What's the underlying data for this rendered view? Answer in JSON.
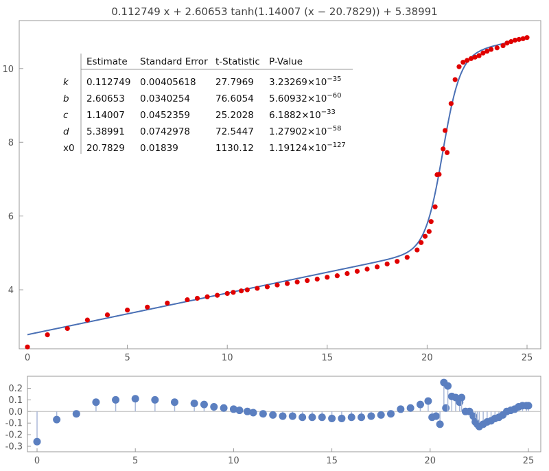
{
  "chart_data": [
    {
      "type": "scatter",
      "title": "0.112749 x + 2.60653 tanh(1.14007 (x − 20.7829)) + 5.38991",
      "xlim": [
        0,
        25
      ],
      "ylim": [
        2.4,
        11.3
      ],
      "xticks": [
        "0",
        "5",
        "10",
        "15",
        "20",
        "25"
      ],
      "yticks": [
        "4",
        "6",
        "8",
        "10"
      ],
      "grid": false,
      "series": [
        {
          "kind": "points",
          "color": "#e00000",
          "x": [
            0,
            1,
            2,
            3,
            4,
            5,
            6,
            7,
            8,
            8.5,
            9,
            9.5,
            10,
            10.3,
            10.7,
            11,
            11.5,
            12,
            12.5,
            13,
            13.5,
            14,
            14.5,
            15,
            15.5,
            16,
            16.5,
            17,
            17.5,
            18,
            18.5,
            19,
            19.5,
            19.7,
            19.9,
            20.1,
            20.2,
            20.4,
            20.5,
            20.6,
            20.8,
            20.9,
            21.0,
            21.2,
            21.4,
            21.6,
            21.8,
            22.0,
            22.2,
            22.4,
            22.6,
            22.8,
            23.0,
            23.2,
            23.5,
            23.8,
            24.0,
            24.2,
            24.4,
            24.6,
            24.8,
            25.0
          ],
          "y": [
            2.45,
            2.78,
            2.95,
            3.18,
            3.32,
            3.45,
            3.53,
            3.64,
            3.73,
            3.77,
            3.81,
            3.85,
            3.9,
            3.93,
            3.97,
            4.0,
            4.04,
            4.08,
            4.13,
            4.17,
            4.21,
            4.25,
            4.29,
            4.34,
            4.38,
            4.44,
            4.5,
            4.56,
            4.62,
            4.7,
            4.77,
            4.88,
            5.08,
            5.28,
            5.45,
            5.58,
            5.85,
            6.25,
            7.12,
            7.13,
            7.82,
            8.32,
            7.72,
            9.05,
            9.7,
            10.05,
            10.17,
            10.22,
            10.27,
            10.31,
            10.35,
            10.42,
            10.47,
            10.52,
            10.56,
            10.62,
            10.69,
            10.73,
            10.77,
            10.79,
            10.81,
            10.84
          ]
        },
        {
          "kind": "curve",
          "color": "#4a70b5",
          "formula": "0.112749*x + 2.60653*tanh(1.14007*(x-20.7829)) + 5.38991"
        }
      ],
      "table": {
        "headers": [
          "",
          "Estimate",
          "Standard Error",
          "t-Statistic",
          "P-Value"
        ],
        "rows": [
          {
            "param": "k",
            "estimate": "0.112749",
            "stderr": "0.00405618",
            "tstat": "27.7969",
            "pvalue": "3.23269×10",
            "pexp": "−35"
          },
          {
            "param": "b",
            "estimate": "2.60653",
            "stderr": "0.0340254",
            "tstat": "76.6054",
            "pvalue": "5.60932×10",
            "pexp": "−60"
          },
          {
            "param": "c",
            "estimate": "1.14007",
            "stderr": "0.0452359",
            "tstat": "25.2028",
            "pvalue": "6.1882×10",
            "pexp": "−33"
          },
          {
            "param": "d",
            "estimate": "5.38991",
            "stderr": "0.0742978",
            "tstat": "72.5447",
            "pvalue": "1.27902×10",
            "pexp": "−58"
          },
          {
            "param": "x0",
            "estimate": "20.7829",
            "stderr": "0.01839",
            "tstat": "1130.12",
            "pvalue": "1.19124×10",
            "pexp": "−127"
          }
        ]
      }
    },
    {
      "type": "stem",
      "title": "",
      "xlim": [
        0,
        25
      ],
      "ylim": [
        -0.3,
        0.3
      ],
      "xticks": [
        "0",
        "5",
        "10",
        "15",
        "20",
        "25"
      ],
      "yticks": [
        "0.2",
        "0.1",
        "0.0",
        "-0.1",
        "-0.2",
        "-0.3"
      ],
      "grid": false,
      "series": [
        {
          "kind": "stem",
          "color": "#5b7fc0",
          "x": [
            0,
            1,
            2,
            3,
            4,
            5,
            6,
            7,
            8,
            8.5,
            9,
            9.5,
            10,
            10.3,
            10.7,
            11,
            11.5,
            12,
            12.5,
            13,
            13.5,
            14,
            14.5,
            15,
            15.5,
            16,
            16.5,
            17,
            17.5,
            18,
            18.5,
            19,
            19.5,
            19.9,
            20.1,
            20.3,
            20.5,
            20.7,
            20.8,
            20.9,
            21.1,
            21.3,
            21.5,
            21.6,
            21.8,
            22.0,
            22.2,
            22.3,
            22.4,
            22.5,
            22.7,
            22.9,
            23.1,
            23.3,
            23.5,
            23.7,
            23.9,
            24.1,
            24.3,
            24.5,
            24.7,
            24.9,
            25.0
          ],
          "y": [
            -0.26,
            -0.07,
            -0.02,
            0.08,
            0.1,
            0.11,
            0.1,
            0.08,
            0.07,
            0.06,
            0.04,
            0.03,
            0.02,
            0.01,
            0.0,
            -0.01,
            -0.02,
            -0.03,
            -0.04,
            -0.04,
            -0.05,
            -0.05,
            -0.05,
            -0.06,
            -0.06,
            -0.05,
            -0.05,
            -0.04,
            -0.03,
            -0.02,
            0.02,
            0.03,
            0.06,
            0.09,
            -0.05,
            -0.04,
            -0.11,
            0.25,
            0.03,
            0.22,
            0.13,
            0.12,
            0.08,
            0.12,
            0.0,
            0.0,
            -0.04,
            -0.09,
            -0.11,
            -0.13,
            -0.11,
            -0.09,
            -0.08,
            -0.06,
            -0.05,
            -0.03,
            0.0,
            0.01,
            0.02,
            0.04,
            0.05,
            0.05,
            0.05
          ]
        }
      ]
    }
  ]
}
